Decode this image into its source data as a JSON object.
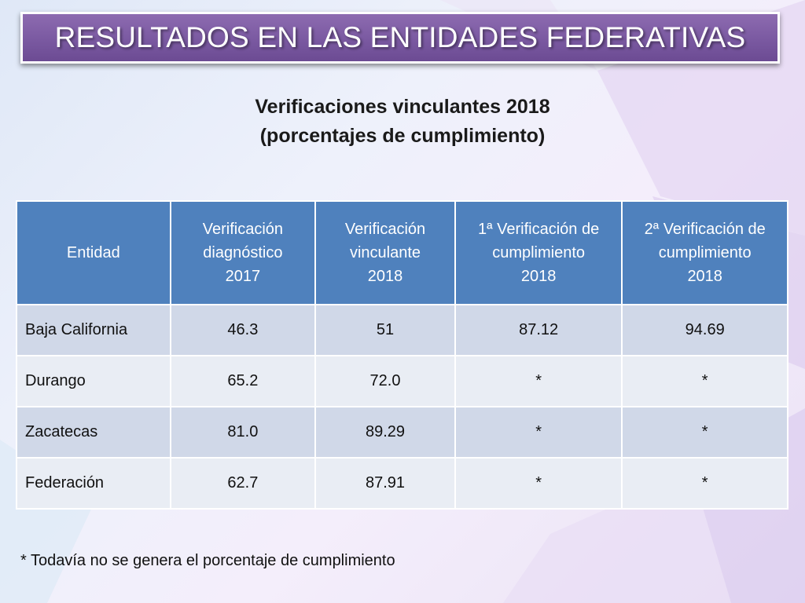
{
  "slide": {
    "title": "RESULTADOS EN LAS ENTIDADES FEDERATIVAS",
    "subtitle_line1": "Verificaciones vinculantes 2018",
    "subtitle_line2": "(porcentajes de cumplimiento)"
  },
  "table": {
    "headers": [
      [
        "Entidad"
      ],
      [
        "Verificación",
        "diagnóstico",
        "2017"
      ],
      [
        "Verificación",
        "vinculante",
        "2018"
      ],
      [
        "1ª Verificación de",
        "cumplimiento",
        "2018"
      ],
      [
        "2ª Verificación de",
        "cumplimiento",
        "2018"
      ]
    ],
    "rows": [
      [
        "Baja California",
        "46.3",
        "51",
        "87.12",
        "94.69"
      ],
      [
        "Durango",
        "65.2",
        "72.0",
        "*",
        "*"
      ],
      [
        "Zacatecas",
        "81.0",
        "89.29",
        "*",
        "*"
      ],
      [
        "Federación",
        "62.7",
        "87.91",
        "*",
        "*"
      ]
    ]
  },
  "footnote": "* Todavía no se genera el porcentaje de cumplimiento",
  "colors": {
    "banner": "#7a59a1",
    "header_fill": "#4f81bd",
    "row_odd": "#d0d8e8",
    "row_even": "#e9edf4"
  }
}
